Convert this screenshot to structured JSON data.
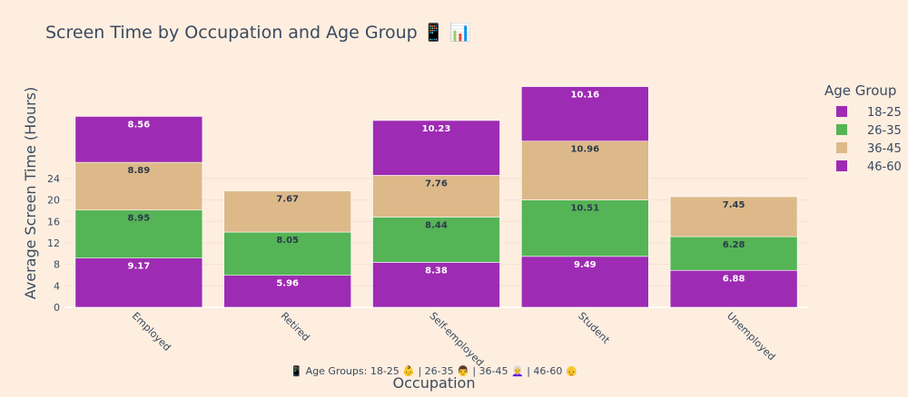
{
  "chart_data": {
    "type": "bar",
    "stacked": true,
    "title": "Screen Time by Occupation and Age Group 📱 📊",
    "xlabel": "Occupation",
    "ylabel": "Average Screen Time (Hours)",
    "ylim": [
      0,
      42
    ],
    "yticks": [
      0,
      4,
      8,
      12,
      16,
      20,
      24
    ],
    "categories": [
      "Employed",
      "Retired",
      "Self-employed",
      "Student",
      "Unemployed"
    ],
    "series": [
      {
        "name": "18-25",
        "color": "#9e2bb3",
        "label_color": "#ffffff",
        "values": [
          9.17,
          5.96,
          8.38,
          9.49,
          6.88
        ]
      },
      {
        "name": "26-35",
        "color": "#55b455",
        "label_color": "#2b3a4a",
        "values": [
          8.95,
          8.05,
          8.44,
          10.51,
          6.28
        ]
      },
      {
        "name": "36-45",
        "color": "#ddb98a",
        "label_color": "#2b3a4a",
        "values": [
          8.89,
          7.67,
          7.76,
          10.96,
          7.45
        ]
      },
      {
        "name": "46-60",
        "color": "#9e2bb3",
        "label_color": "#ffffff",
        "values": [
          8.56,
          null,
          10.23,
          10.16,
          null
        ]
      }
    ],
    "legend_title": "Age Group",
    "legend_position": "right",
    "annotation": "📱 Age Groups: 18-25 👶 | 26-35 👨 | 36-45 👩‍🦳 | 46-60 👴"
  }
}
